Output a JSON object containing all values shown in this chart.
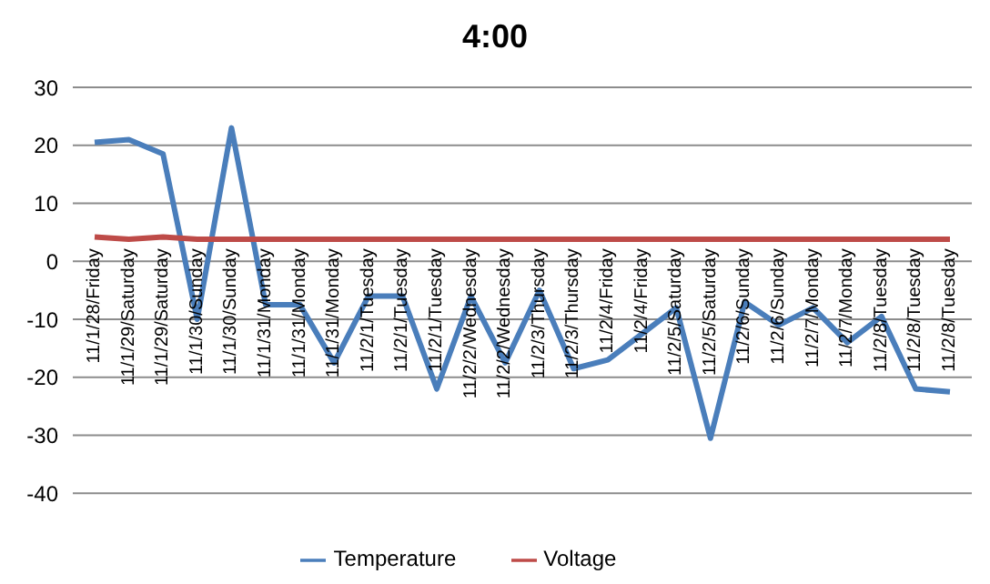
{
  "chart_data": {
    "type": "line",
    "title": "4:00",
    "categories": [
      "11/1/28/Friday",
      "11/1/29/Saturday",
      "11/1/29/Saturday",
      "11/1/30/Sunday",
      "11/1/30/Sunday",
      "11/1/31/Monday",
      "11/1/31/Monday",
      "11/1/31/Monday",
      "11/2/1/Tuesday",
      "11/2/1/Tuesday",
      "11/2/1/Tuesday",
      "11/2/2/Wednesday",
      "11/2/2/Wednesday",
      "11/2/3/Thursday",
      "11/2/3/Thursday",
      "11/2/4/Friday",
      "11/2/4/Friday",
      "11/2/5/Saturday",
      "11/2/5/Saturday",
      "11/2/6/Sunday",
      "11/2/6/Sunday",
      "11/2/7/Monday",
      "11/2/7/Monday",
      "11/2/8/Tuesday",
      "11/2/8/Tuesday",
      "11/2/8/Tuesday"
    ],
    "series": [
      {
        "name": "Temperature",
        "color": "#4a7ebb",
        "values": [
          20.5,
          21,
          18.5,
          -10,
          23,
          -7.5,
          -7.5,
          -17.5,
          -6,
          -6,
          -22,
          -6,
          -17.5,
          -5,
          -18.5,
          -17,
          -12.5,
          -8,
          -30.5,
          -7,
          -11,
          -8,
          -14,
          -9.5,
          -22,
          -22.5
        ]
      },
      {
        "name": "Voltage",
        "color": "#be4b48",
        "values": [
          4.2,
          3.8,
          4.2,
          3.8,
          3.8,
          3.8,
          3.8,
          3.8,
          3.8,
          3.8,
          3.8,
          3.8,
          3.8,
          3.8,
          3.8,
          3.8,
          3.8,
          3.8,
          3.8,
          3.8,
          3.8,
          3.8,
          3.8,
          3.8,
          3.8,
          3.8
        ]
      }
    ],
    "ylim": [
      -40,
      30
    ],
    "yticks": [
      -40,
      -30,
      -20,
      -10,
      0,
      10,
      20,
      30
    ],
    "grid": "y",
    "legend": "bottom",
    "marker": "none",
    "line_style": "solid"
  }
}
